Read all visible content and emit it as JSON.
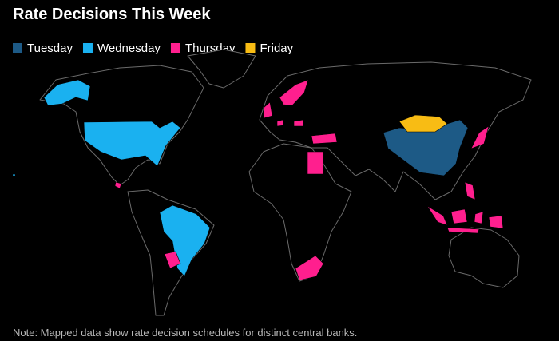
{
  "title": "Rate Decisions This Week",
  "legend": [
    {
      "name": "Tuesday",
      "color": "#1d5a86"
    },
    {
      "name": "Wednesday",
      "color": "#1ab1f0"
    },
    {
      "name": "Thursday",
      "color": "#ff1f8e"
    },
    {
      "name": "Friday",
      "color": "#f8bc14"
    }
  ],
  "note": "Note: Mapped data show rate decision schedules for distinct central banks."
}
